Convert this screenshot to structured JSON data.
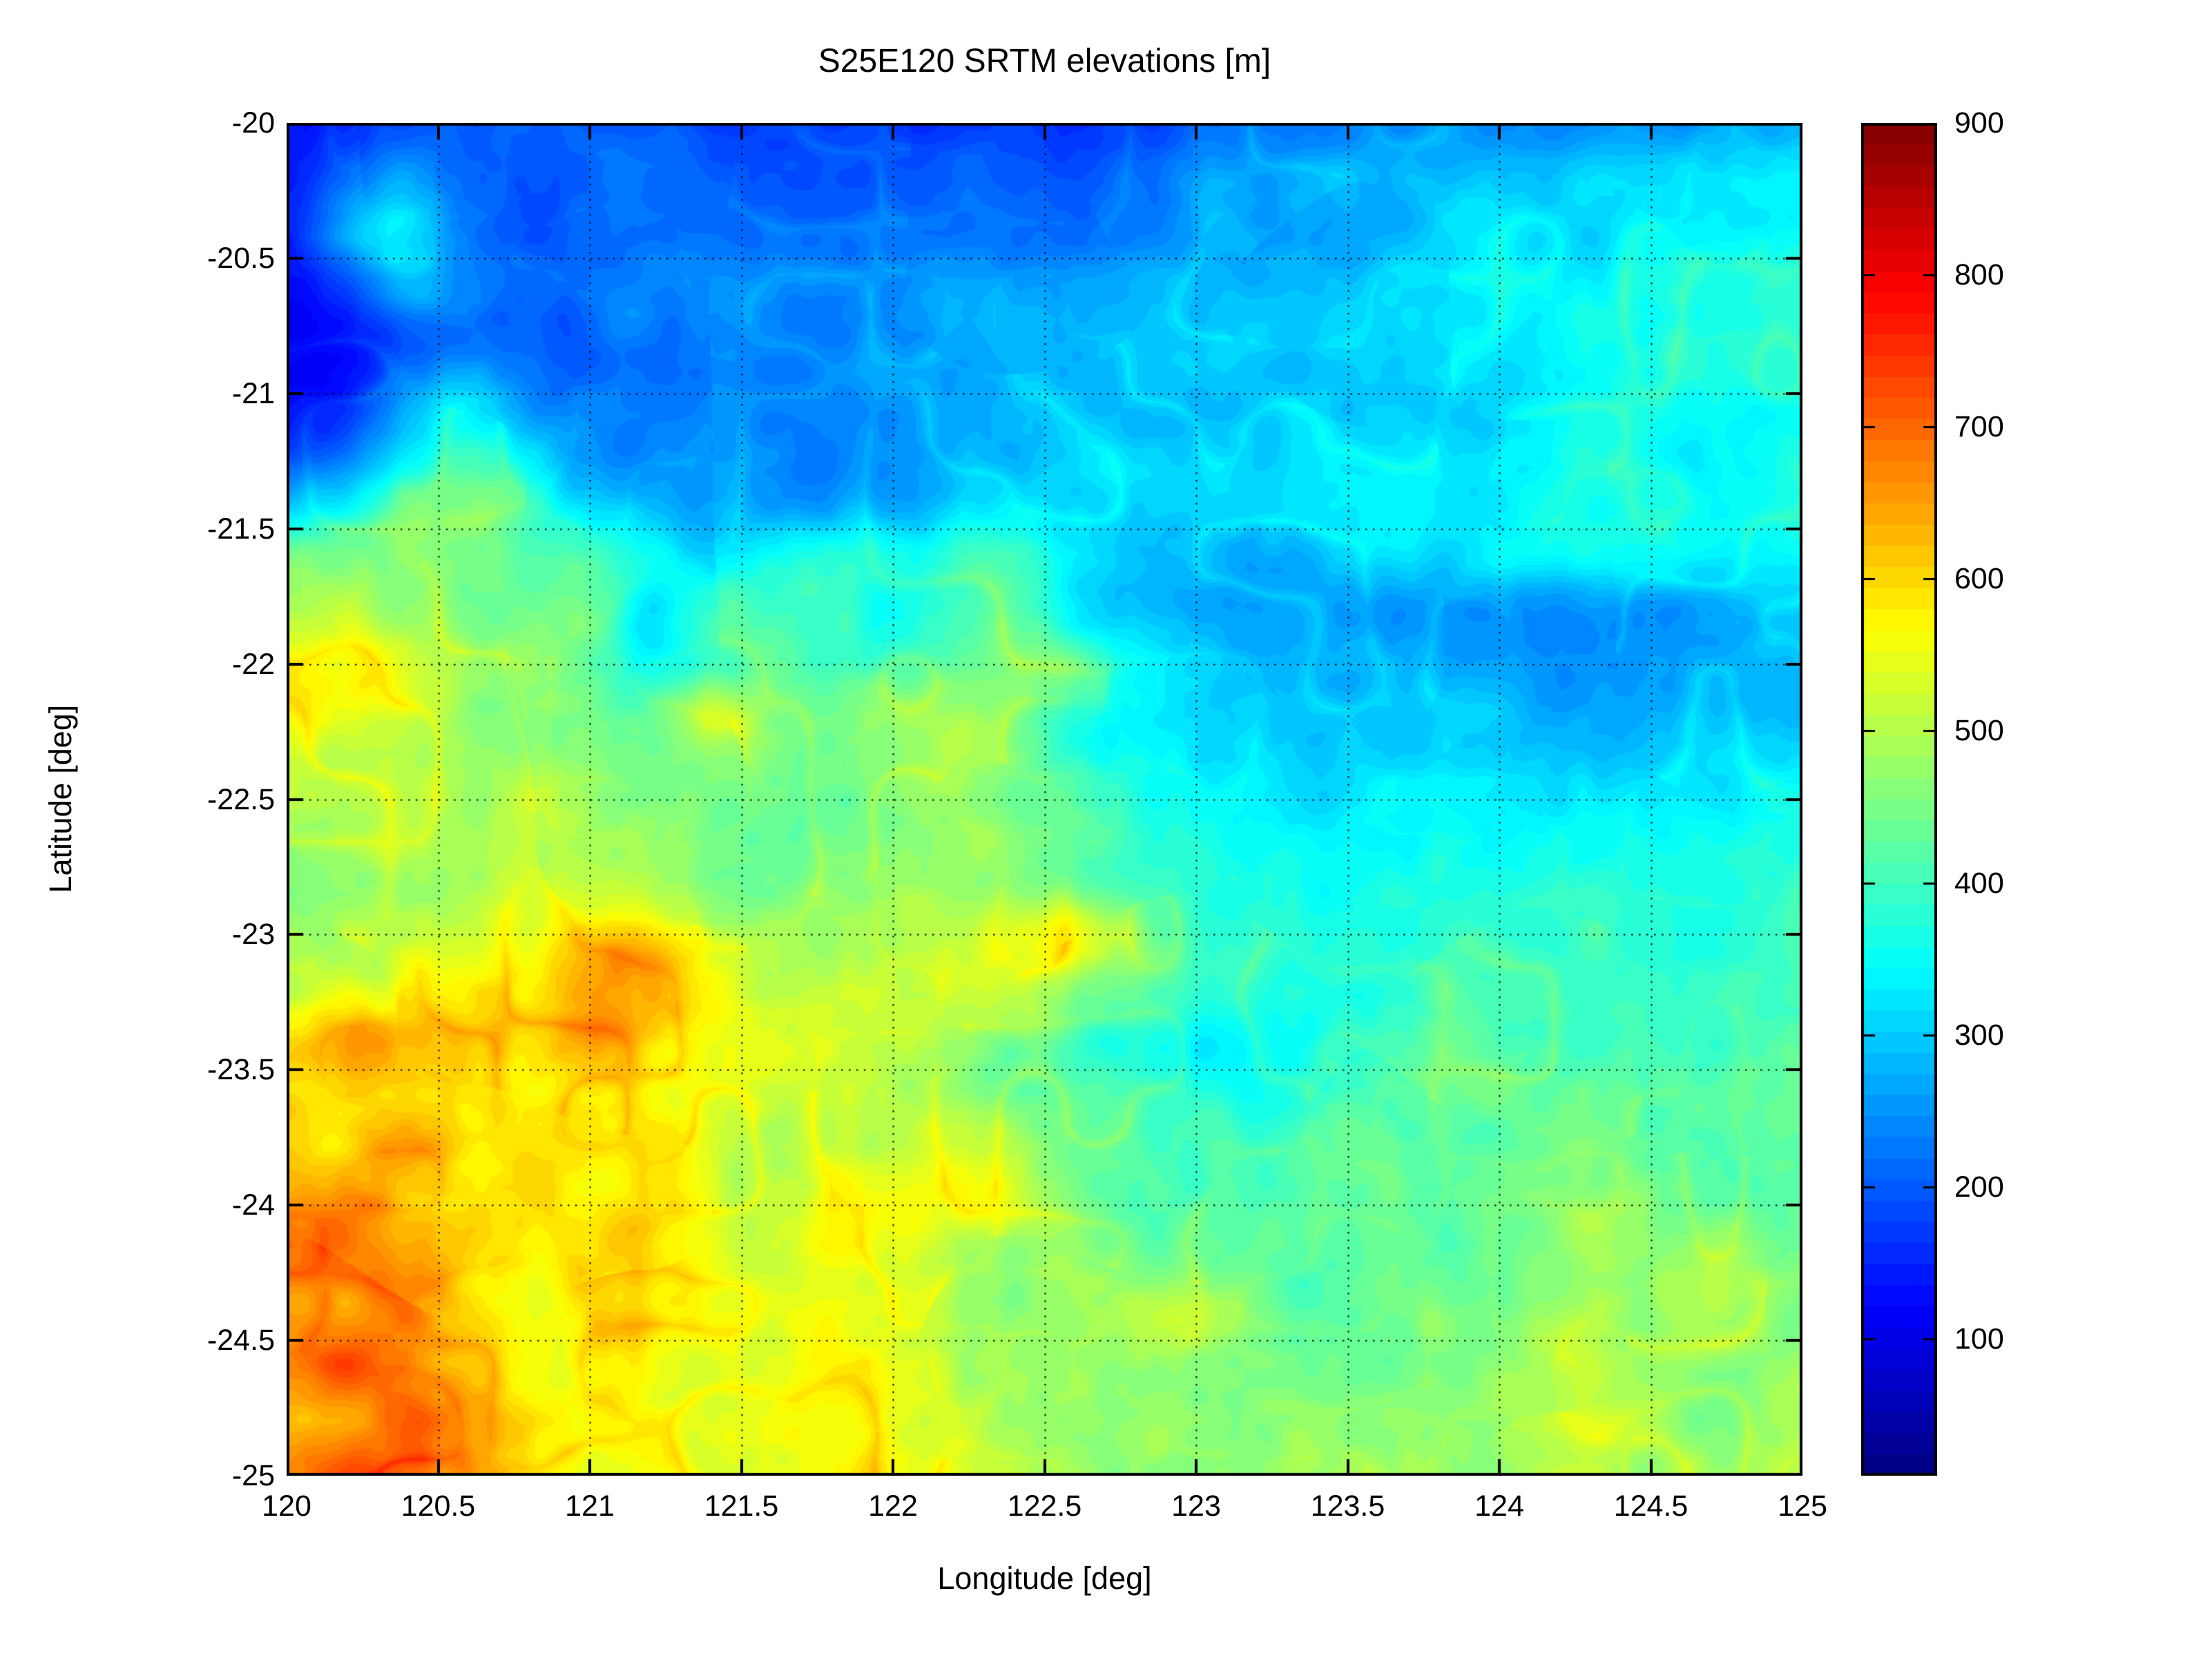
{
  "figure": {
    "title": "S25E120 SRTM elevations [m]",
    "xlabel": "Longitude [deg]",
    "ylabel": "Latitude [deg]"
  },
  "chart_data": {
    "type": "heatmap",
    "title": "S25E120 SRTM elevations [m]",
    "xlabel": "Longitude [deg]",
    "ylabel": "Latitude [deg]",
    "x_range": [
      120,
      125
    ],
    "y_range": [
      -25,
      -20
    ],
    "x_tick_labels": [
      "120",
      "120.5",
      "121",
      "121.5",
      "122",
      "122.5",
      "123",
      "123.5",
      "124",
      "124.5",
      "125"
    ],
    "y_tick_labels": [
      "-20",
      "-20.5",
      "-21",
      "-21.5",
      "-22",
      "-22.5",
      "-23",
      "-23.5",
      "-24",
      "-24.5",
      "-25"
    ],
    "grid": "dotted",
    "colormap": "jet",
    "vmin": 10,
    "vmax": 900,
    "colorbar": {
      "tick_labels": [
        "900",
        "800",
        "700",
        "600",
        "500",
        "400",
        "300",
        "200",
        "100"
      ],
      "tick_values": [
        900,
        800,
        700,
        600,
        500,
        400,
        300,
        200,
        100
      ]
    },
    "x": [
      120.0,
      120.2,
      120.4,
      120.6,
      120.8,
      121.0,
      121.2,
      121.4,
      121.6,
      121.8,
      122.0,
      122.2,
      122.4,
      122.6,
      122.8,
      123.0,
      123.2,
      123.4,
      123.6,
      123.8,
      124.0,
      124.2,
      124.4,
      124.6,
      124.8,
      125.0
    ],
    "y": [
      -20.0,
      -20.2,
      -20.4,
      -20.6,
      -20.8,
      -21.0,
      -21.2,
      -21.4,
      -21.6,
      -21.8,
      -22.0,
      -22.2,
      -22.4,
      -22.6,
      -22.8,
      -23.0,
      -23.2,
      -23.4,
      -23.6,
      -23.8,
      -24.0,
      -24.2,
      -24.4,
      -24.6,
      -24.8,
      -25.0
    ],
    "values": [
      [
        145,
        155,
        165,
        175,
        185,
        195,
        200,
        196,
        190,
        180,
        172,
        168,
        172,
        178,
        185,
        192,
        202,
        214,
        228,
        241,
        251,
        258,
        263,
        267,
        271,
        275
      ],
      [
        138,
        175,
        245,
        205,
        196,
        206,
        213,
        211,
        207,
        203,
        199,
        197,
        201,
        209,
        219,
        233,
        247,
        261,
        273,
        284,
        293,
        300,
        306,
        311,
        315,
        318
      ],
      [
        128,
        255,
        305,
        232,
        206,
        216,
        223,
        221,
        217,
        215,
        213,
        213,
        217,
        223,
        231,
        243,
        255,
        267,
        279,
        289,
        297,
        304,
        310,
        315,
        319,
        322
      ],
      [
        108,
        178,
        282,
        242,
        216,
        226,
        236,
        239,
        241,
        244,
        247,
        249,
        253,
        259,
        265,
        273,
        281,
        291,
        301,
        311,
        321,
        331,
        338,
        343,
        347,
        350
      ],
      [
        98,
        128,
        198,
        222,
        212,
        202,
        207,
        217,
        227,
        237,
        247,
        253,
        259,
        265,
        271,
        277,
        285,
        295,
        305,
        315,
        325,
        335,
        342,
        347,
        351,
        354
      ],
      [
        104,
        142,
        262,
        318,
        242,
        212,
        207,
        212,
        222,
        230,
        238,
        246,
        254,
        262,
        270,
        278,
        286,
        294,
        302,
        312,
        320,
        328,
        334,
        339,
        343,
        346
      ],
      [
        150,
        222,
        322,
        378,
        302,
        242,
        227,
        227,
        232,
        240,
        248,
        256,
        264,
        272,
        280,
        288,
        296,
        303,
        309,
        317,
        323,
        329,
        335,
        339,
        343,
        345
      ],
      [
        262,
        342,
        418,
        428,
        358,
        292,
        262,
        257,
        262,
        270,
        278,
        286,
        294,
        300,
        307,
        315,
        321,
        327,
        331,
        337,
        341,
        345,
        348,
        350,
        352,
        354
      ],
      [
        432,
        468,
        458,
        438,
        418,
        388,
        332,
        292,
        362,
        376,
        366,
        372,
        398,
        332,
        296,
        276,
        271,
        301,
        316,
        331,
        341,
        348,
        352,
        355,
        357,
        358
      ],
      [
        482,
        512,
        482,
        462,
        442,
        422,
        302,
        392,
        402,
        386,
        366,
        402,
        432,
        332,
        306,
        281,
        271,
        273,
        268,
        262,
        256,
        259,
        263,
        269,
        275,
        281
      ],
      [
        546,
        562,
        522,
        496,
        478,
        456,
        362,
        392,
        398,
        402,
        386,
        432,
        468,
        422,
        336,
        292,
        274,
        268,
        262,
        256,
        252,
        255,
        260,
        266,
        274,
        285
      ],
      [
        562,
        546,
        512,
        493,
        481,
        471,
        451,
        518,
        446,
        421,
        441,
        501,
        481,
        366,
        323,
        296,
        281,
        286,
        292,
        286,
        277,
        279,
        285,
        291,
        297,
        303
      ],
      [
        526,
        501,
        493,
        487,
        479,
        469,
        463,
        471,
        449,
        439,
        459,
        479,
        443,
        403,
        353,
        323,
        306,
        311,
        321,
        316,
        306,
        309,
        315,
        321,
        327,
        333
      ],
      [
        469,
        463,
        459,
        463,
        467,
        471,
        477,
        461,
        445,
        451,
        463,
        449,
        433,
        421,
        383,
        353,
        333,
        341,
        349,
        345,
        337,
        341,
        347,
        351,
        355,
        359
      ],
      [
        439,
        449,
        455,
        463,
        473,
        493,
        487,
        463,
        447,
        459,
        471,
        453,
        439,
        427,
        403,
        383,
        363,
        369,
        373,
        371,
        365,
        367,
        371,
        375,
        379,
        383
      ],
      [
        443,
        461,
        473,
        501,
        523,
        541,
        556,
        493,
        463,
        471,
        481,
        493,
        536,
        573,
        489,
        399,
        379,
        383,
        387,
        385,
        379,
        381,
        384,
        387,
        391,
        395
      ],
      [
        479,
        511,
        536,
        561,
        581,
        641,
        621,
        561,
        489,
        479,
        489,
        499,
        509,
        473,
        429,
        403,
        389,
        393,
        397,
        395,
        391,
        393,
        396,
        399,
        402,
        405
      ],
      [
        562,
        626,
        586,
        566,
        571,
        641,
        606,
        561,
        523,
        503,
        483,
        469,
        459,
        383,
        347,
        343,
        361,
        369,
        377,
        385,
        393,
        397,
        401,
        406,
        411,
        416
      ],
      [
        603,
        589,
        573,
        567,
        561,
        573,
        565,
        549,
        513,
        509,
        489,
        479,
        449,
        423,
        386,
        381,
        389,
        395,
        403,
        411,
        419,
        423,
        427,
        430,
        433,
        436
      ],
      [
        623,
        603,
        646,
        583,
        569,
        561,
        557,
        545,
        517,
        519,
        501,
        499,
        469,
        443,
        421,
        403,
        401,
        407,
        413,
        421,
        427,
        431,
        434,
        437,
        439,
        441
      ],
      [
        653,
        686,
        626,
        596,
        581,
        571,
        563,
        549,
        525,
        529,
        539,
        519,
        499,
        463,
        439,
        423,
        413,
        419,
        425,
        431,
        435,
        453,
        469,
        445,
        443,
        445
      ],
      [
        706,
        683,
        643,
        613,
        593,
        573,
        561,
        551,
        533,
        539,
        523,
        509,
        489,
        469,
        449,
        433,
        423,
        429,
        435,
        441,
        445,
        449,
        453,
        456,
        458,
        460
      ],
      [
        653,
        633,
        616,
        603,
        589,
        573,
        557,
        549,
        533,
        539,
        529,
        519,
        499,
        483,
        503,
        513,
        463,
        443,
        449,
        479,
        457,
        455,
        458,
        461,
        463,
        465
      ],
      [
        626,
        716,
        606,
        593,
        583,
        571,
        559,
        549,
        539,
        549,
        539,
        529,
        509,
        493,
        479,
        463,
        453,
        449,
        453,
        457,
        461,
        489,
        465,
        467,
        469,
        471
      ],
      [
        643,
        629,
        703,
        613,
        589,
        573,
        561,
        553,
        543,
        559,
        545,
        533,
        513,
        499,
        483,
        469,
        459,
        457,
        460,
        463,
        466,
        468,
        470,
        472,
        474,
        476
      ],
      [
        663,
        706,
        683,
        603,
        586,
        576,
        566,
        559,
        549,
        563,
        549,
        539,
        519,
        503,
        489,
        476,
        466,
        463,
        466,
        469,
        472,
        474,
        476,
        478,
        480,
        482
      ]
    ]
  }
}
